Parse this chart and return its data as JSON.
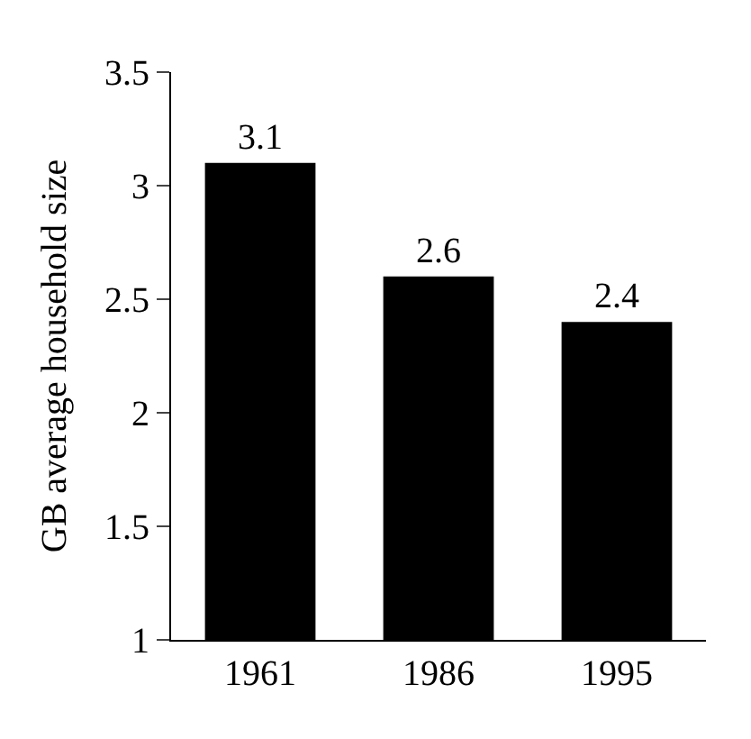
{
  "chart_data": {
    "type": "bar",
    "ylabel": "GB average household size",
    "categories": [
      "1961",
      "1986",
      "1995"
    ],
    "values": [
      3.1,
      2.6,
      2.4
    ],
    "color": "#000000",
    "ylim": [
      1,
      3.5
    ],
    "yticks": [
      1,
      1.5,
      2,
      2.5,
      3,
      3.5
    ],
    "data_labels": true
  }
}
